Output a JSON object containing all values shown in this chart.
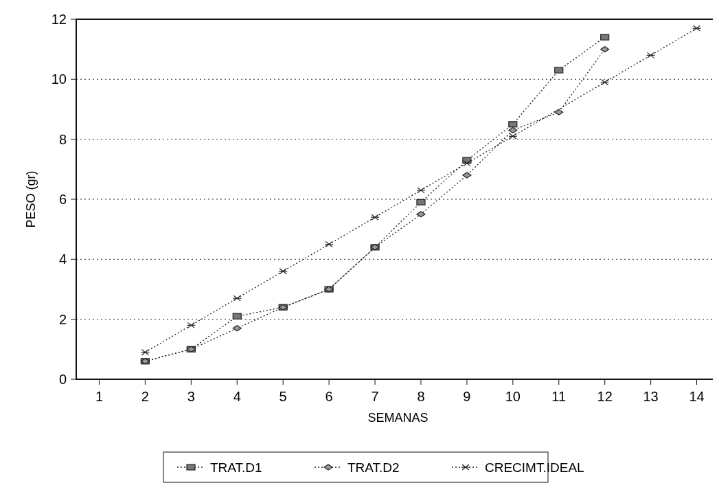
{
  "chart_data": {
    "type": "line",
    "xlabel": "SEMANAS",
    "ylabel": "PESO (gr)",
    "xlim": [
      0.5,
      14.5
    ],
    "xticks": [
      1,
      2,
      3,
      4,
      5,
      6,
      7,
      8,
      9,
      10,
      11,
      12,
      13,
      14
    ],
    "ylim": [
      0,
      12
    ],
    "yticks": [
      0,
      2,
      4,
      6,
      8,
      10,
      12
    ],
    "grid": "y",
    "legend": "bottom",
    "line_style": "dotted",
    "series": [
      {
        "name": "TRAT.D1",
        "color": "#222222",
        "marker": "square",
        "x": [
          2,
          3,
          4,
          5,
          6,
          7,
          8,
          9,
          10,
          11,
          12
        ],
        "values": [
          0.6,
          1.0,
          2.1,
          2.4,
          3.0,
          4.4,
          5.9,
          7.3,
          8.5,
          10.3,
          11.4
        ]
      },
      {
        "name": "TRAT.D2",
        "color": "#222222",
        "marker": "diamond",
        "x": [
          2,
          3,
          4,
          5,
          6,
          7,
          8,
          9,
          10,
          11,
          12
        ],
        "values": [
          0.6,
          1.0,
          1.7,
          2.4,
          3.0,
          4.4,
          5.5,
          6.8,
          8.3,
          8.9,
          11.0
        ]
      },
      {
        "name": "CRECIMT.IDEAL",
        "color": "#222222",
        "marker": "cross",
        "x": [
          2,
          3,
          4,
          5,
          6,
          7,
          8,
          9,
          10,
          12,
          13,
          14
        ],
        "values": [
          0.9,
          1.8,
          2.7,
          3.6,
          4.5,
          5.4,
          6.3,
          7.2,
          8.1,
          9.9,
          10.8,
          11.7
        ]
      }
    ]
  }
}
